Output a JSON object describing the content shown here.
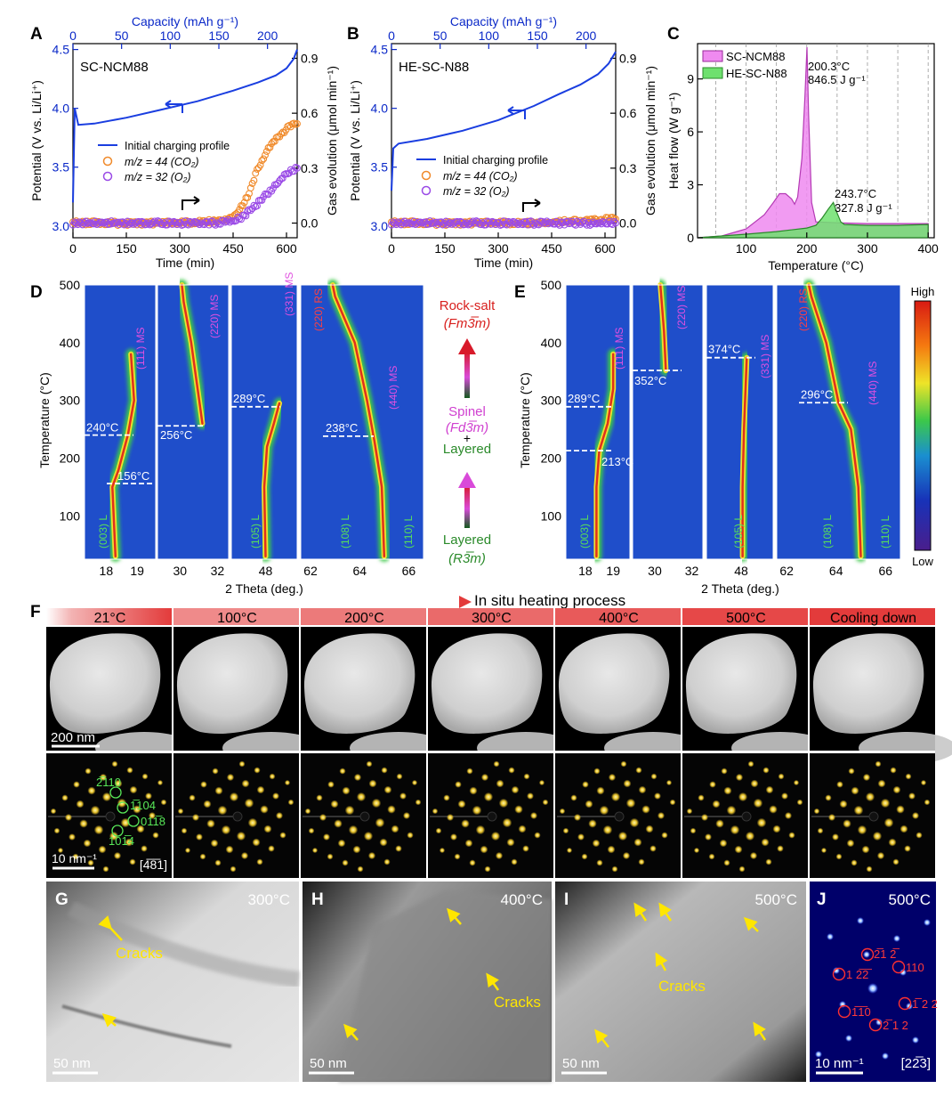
{
  "figure": {
    "panel_letters": [
      "A",
      "B",
      "C",
      "D",
      "E",
      "F",
      "G",
      "H",
      "I",
      "J"
    ]
  },
  "panel_a": {
    "sample": "SC-NCM88",
    "top_axis_label": "Capacity (mAh g⁻¹)",
    "top_ticks": [
      "0",
      "50",
      "100",
      "150",
      "200"
    ],
    "bottom_axis_label": "Time (min)",
    "bottom_ticks": [
      "0",
      "150",
      "300",
      "450",
      "600"
    ],
    "left_axis_label": "Potential (V vs. Li/Li⁺)",
    "left_ticks": [
      "3.0",
      "3.5",
      "4.0",
      "4.5"
    ],
    "right_axis_label": "Gas evolution (μmol min⁻¹)",
    "right_ticks": [
      "0.0",
      "0.3",
      "0.6",
      "0.9"
    ],
    "legend": [
      "Initial charging profile",
      "m/z = 44 (CO₂)",
      "m/z = 32 (O₂)"
    ]
  },
  "panel_b": {
    "sample": "HE-SC-N88",
    "legend": [
      "Initial charging profile",
      "m/z = 44 (CO₂)",
      "m/z = 32 (O₂)"
    ]
  },
  "panel_c": {
    "legend": [
      "SC-NCM88",
      "HE-SC-N88"
    ],
    "ylabel": "Heat flow (W g⁻¹)",
    "xlabel": "Temperature (°C)",
    "xticks": [
      "100",
      "200",
      "300",
      "400"
    ],
    "yticks": [
      "0",
      "3",
      "6",
      "9"
    ],
    "annot1": [
      "200.3°C",
      "846.5 J g⁻¹"
    ],
    "annot2": [
      "243.7°C",
      "327.8 J g⁻¹"
    ]
  },
  "panel_d": {
    "ylabel": "Temperature (°C)",
    "yticks": [
      "100",
      "200",
      "300",
      "400",
      "500"
    ],
    "xlabel": "2 Theta (deg.)",
    "xticks": [
      "18",
      "19",
      "30",
      "32",
      "48",
      "62",
      "64",
      "66"
    ],
    "peaks": [
      "(003) L",
      "(111) MS",
      "(220) MS",
      "(105) L",
      "(331) MS",
      "(108) L",
      "(110) L",
      "(440) MS",
      "(220) RS"
    ],
    "transitions": [
      "156°C",
      "240°C",
      "256°C",
      "289°C",
      "238°C"
    ]
  },
  "phase_legend": {
    "rocksalt": "Rock-salt",
    "rocksalt_group": "(Fm3̅m)",
    "spinel": "Spinel",
    "spinel_group": "(Fd3̅m)",
    "plus": "+",
    "layered_mid": "Layered",
    "layered": "Layered",
    "layered_group": "(R3̅m)"
  },
  "panel_e": {
    "transitions": [
      "213°C",
      "289°C",
      "352°C",
      "374°C",
      "296°C"
    ],
    "colorbar_high": "High",
    "colorbar_low": "Low"
  },
  "panel_f": {
    "process_label": "In situ heating process",
    "headers": [
      "21°C",
      "100°C",
      "200°C",
      "300°C",
      "400°C",
      "500°C",
      "Cooling down"
    ],
    "scale_image": "200 nm",
    "scale_diff": "10 nm⁻¹",
    "zone_axis": "[4̅8̅1]",
    "spots": [
      "2̅110",
      "1̅104",
      "011̅8",
      "101̅4"
    ]
  },
  "panel_g": {
    "temp": "300°C",
    "label": "Cracks",
    "scale": "50 nm"
  },
  "panel_h": {
    "temp": "400°C",
    "label": "Cracks",
    "scale": "50 nm"
  },
  "panel_i": {
    "temp": "500°C",
    "label": "Cracks",
    "scale": "50 nm"
  },
  "panel_j": {
    "temp": "500°C",
    "scale": "10 nm⁻¹",
    "zone_axis": "[22̅3]",
    "spots": [
      "2̅1 2̅",
      "110",
      "1 2̅2̅",
      "1̅ 2 2",
      "1̅1̅0",
      "2̅ 1 2"
    ]
  },
  "chart_data": [
    {
      "type": "line",
      "panel": "A",
      "x_name": "Time (min)",
      "xlim": [
        0,
        630
      ],
      "ylim_left": [
        2.9,
        4.55
      ],
      "ylim_right": [
        -0.08,
        0.98
      ],
      "series": [
        {
          "name": "Initial charging profile",
          "axis": "left",
          "x": [
            0,
            5,
            15,
            60,
            150,
            250,
            350,
            450,
            520,
            570,
            600,
            620,
            630
          ],
          "y": [
            3.2,
            4.0,
            3.86,
            3.87,
            3.92,
            3.99,
            4.06,
            4.15,
            4.22,
            4.28,
            4.34,
            4.42,
            4.5
          ]
        },
        {
          "name": "m/z = 44 (CO₂)",
          "axis": "right",
          "x": [
            0,
            100,
            200,
            300,
            400,
            430,
            460,
            490,
            520,
            550,
            580,
            610,
            630
          ],
          "y": [
            0.0,
            0.0,
            0.0,
            0.0,
            0.01,
            0.02,
            0.05,
            0.14,
            0.3,
            0.41,
            0.48,
            0.53,
            0.55
          ]
        },
        {
          "name": "m/z = 32 (O₂)",
          "axis": "right",
          "x": [
            0,
            100,
            200,
            300,
            400,
            450,
            480,
            510,
            540,
            570,
            600,
            630
          ],
          "y": [
            0.0,
            0.0,
            0.0,
            0.0,
            0.0,
            0.01,
            0.04,
            0.09,
            0.15,
            0.21,
            0.27,
            0.3
          ]
        }
      ]
    },
    {
      "type": "line",
      "panel": "B",
      "x_name": "Time (min)",
      "xlim": [
        0,
        630
      ],
      "ylim_left": [
        2.9,
        4.55
      ],
      "ylim_right": [
        -0.08,
        0.98
      ],
      "series": [
        {
          "name": "Initial charging profile",
          "axis": "left",
          "x": [
            0,
            5,
            20,
            100,
            200,
            300,
            400,
            470,
            530,
            580,
            610,
            630
          ],
          "y": [
            3.3,
            3.66,
            3.7,
            3.74,
            3.81,
            3.9,
            4.02,
            4.12,
            4.2,
            4.29,
            4.38,
            4.48
          ]
        },
        {
          "name": "m/z = 44 (CO₂)",
          "axis": "right",
          "x": [
            0,
            200,
            400,
            500,
            600,
            630
          ],
          "y": [
            0.0,
            0.0,
            0.0,
            0.01,
            0.02,
            0.03
          ]
        },
        {
          "name": "m/z = 32 (O₂)",
          "axis": "right",
          "x": [
            0,
            200,
            400,
            500,
            600,
            630
          ],
          "y": [
            0.0,
            0.0,
            0.0,
            0.0,
            0.0,
            0.0
          ]
        }
      ]
    },
    {
      "type": "area",
      "panel": "C",
      "xlim": [
        20,
        410
      ],
      "ylim": [
        0,
        11
      ],
      "series": [
        {
          "name": "SC-NCM88",
          "x": [
            20,
            60,
            100,
            130,
            145,
            155,
            165,
            175,
            180,
            185,
            192,
            197,
            200.3,
            203,
            208,
            215,
            250,
            300,
            350,
            400
          ],
          "y": [
            0,
            0.1,
            0.5,
            1.3,
            2.0,
            2.5,
            2.5,
            2.2,
            1.9,
            2.3,
            4.5,
            8.0,
            10.8,
            7.0,
            2.0,
            0.9,
            0.85,
            0.8,
            0.8,
            0.8
          ]
        },
        {
          "name": "HE-SC-N88",
          "x": [
            20,
            100,
            150,
            200,
            215,
            225,
            235,
            243.7,
            250,
            256,
            262,
            300,
            350,
            400
          ],
          "y": [
            0,
            0.2,
            0.35,
            0.55,
            0.7,
            1.1,
            1.6,
            2.0,
            1.4,
            0.9,
            0.75,
            0.7,
            0.7,
            0.75
          ]
        }
      ]
    },
    {
      "type": "heatmap",
      "panel": "D",
      "ylim": [
        25,
        500
      ],
      "segments": [
        {
          "xlim": [
            17.3,
            19.6
          ],
          "ridges": [
            [
              [
                18.3,
                30
              ],
              [
                18.2,
                150
              ],
              [
                18.4,
                180
              ],
              [
                18.7,
                240
              ],
              [
                18.9,
                300
              ],
              [
                18.8,
                380
              ]
            ]
          ]
        },
        {
          "xlim": [
            28.8,
            32.6
          ],
          "ridges": [
            [
              [
                31.2,
                260
              ],
              [
                30.9,
                330
              ],
              [
                30.6,
                400
              ],
              [
                30.2,
                470
              ],
              [
                30.1,
                500
              ]
            ]
          ]
        },
        {
          "xlim": [
            45.5,
            50.3
          ],
          "ridges": [
            [
              [
                48.0,
                30
              ],
              [
                47.9,
                150
              ],
              [
                48.1,
                220
              ],
              [
                48.6,
                260
              ],
              [
                49.0,
                295
              ]
            ]
          ]
        },
        {
          "xlim": [
            61.6,
            66.6
          ],
          "ridges": [
            [
              [
                65.0,
                30
              ],
              [
                64.9,
                150
              ],
              [
                64.6,
                230
              ],
              [
                64.3,
                300
              ],
              [
                63.8,
                400
              ],
              [
                63.0,
                480
              ],
              [
                62.9,
                500
              ]
            ]
          ]
        }
      ]
    },
    {
      "type": "heatmap",
      "panel": "E",
      "ylim": [
        25,
        500
      ],
      "segments": [
        {
          "xlim": [
            17.3,
            19.6
          ],
          "ridges": [
            [
              [
                18.4,
                30
              ],
              [
                18.4,
                150
              ],
              [
                18.5,
                213
              ],
              [
                18.8,
                260
              ],
              [
                19.0,
                320
              ],
              [
                19.0,
                380
              ]
            ]
          ]
        },
        {
          "xlim": [
            28.8,
            32.6
          ],
          "ridges": [
            [
              [
                30.6,
                352
              ],
              [
                30.5,
                420
              ],
              [
                30.3,
                500
              ]
            ]
          ]
        },
        {
          "xlim": [
            45.5,
            50.3
          ],
          "ridges": [
            [
              [
                48.1,
                30
              ],
              [
                48.1,
                150
              ],
              [
                48.2,
                250
              ],
              [
                48.4,
                374
              ]
            ]
          ]
        },
        {
          "xlim": [
            61.6,
            66.6
          ],
          "ridges": [
            [
              [
                65.0,
                30
              ],
              [
                64.9,
                150
              ],
              [
                64.6,
                250
              ],
              [
                64.1,
                296
              ],
              [
                63.6,
                400
              ],
              [
                63.0,
                480
              ],
              [
                62.9,
                500
              ]
            ]
          ]
        }
      ]
    }
  ]
}
